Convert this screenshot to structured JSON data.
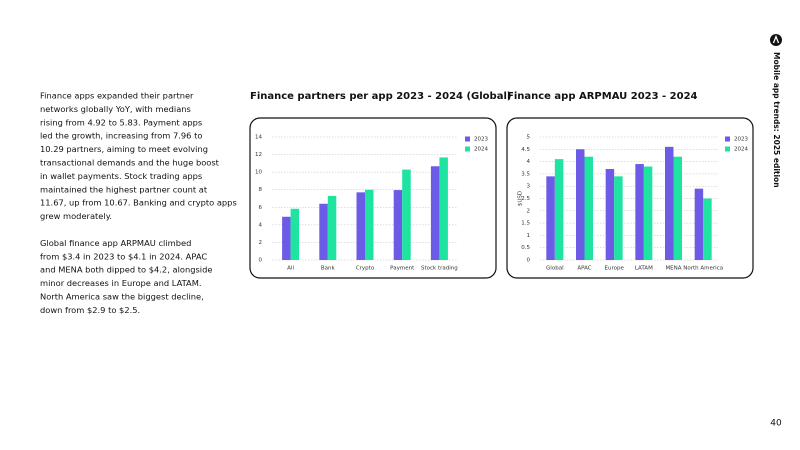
{
  "paragraphs": [
    [
      "Finance apps expanded their partner",
      "networks globally YoY, with medians",
      "rising from 4.92 to 5.83. Payment apps",
      "led the growth, increasing from 7.96 to",
      "10.29 partners, aiming to meet evolving",
      "transactional demands and the huge boost",
      "in wallet payments. Stock trading apps",
      "maintained the highest partner count at",
      "11.67, up from 10.67. Banking and crypto apps",
      "grew moderately."
    ],
    [
      "Global finance app ARPMAU climbed",
      "from $3.4 in 2023 to $4.1 in 2024. APAC",
      "and MENA both dipped to $4.2, alongside",
      "minor decreases in Europe and LATAM.",
      "North America saw the biggest decline,",
      "down from $2.9 to $2.5."
    ]
  ],
  "side_label": "Mobile app trends: 2025 edition",
  "page_number": "40",
  "chart_data": [
    {
      "type": "bar",
      "title": "Finance partners per app 2023 - 2024 (Global)",
      "categories": [
        "All",
        "Bank",
        "Crypto",
        "Payment",
        "Stock trading"
      ],
      "series": [
        {
          "name": "2023",
          "color": "#6b5be6",
          "values": [
            4.92,
            6.4,
            7.7,
            7.96,
            10.67
          ]
        },
        {
          "name": "2024",
          "color": "#1fe3a0",
          "values": [
            5.83,
            7.3,
            8.0,
            10.29,
            11.67
          ]
        }
      ],
      "ylim": [
        0,
        14
      ],
      "yticks": [
        0,
        2,
        4,
        6,
        8,
        10,
        12,
        14
      ],
      "grid": true,
      "legend": "top-right"
    },
    {
      "type": "bar",
      "title": "Finance app ARPMAU 2023 - 2024",
      "y_label": "$USD",
      "categories": [
        "Global",
        "APAC",
        "Europe",
        "LATAM",
        "MENA",
        "North America"
      ],
      "series": [
        {
          "name": "2023",
          "color": "#6b5be6",
          "values": [
            3.4,
            4.5,
            3.7,
            3.9,
            4.6,
            2.9
          ]
        },
        {
          "name": "2024",
          "color": "#1fe3a0",
          "values": [
            4.1,
            4.2,
            3.4,
            3.8,
            4.2,
            2.5
          ]
        }
      ],
      "ylim": [
        0,
        5
      ],
      "yticks": [
        0,
        0.5,
        1,
        1.5,
        2,
        2.5,
        3,
        3.5,
        4,
        4.5,
        5
      ],
      "grid": true,
      "legend": "top-right"
    }
  ]
}
